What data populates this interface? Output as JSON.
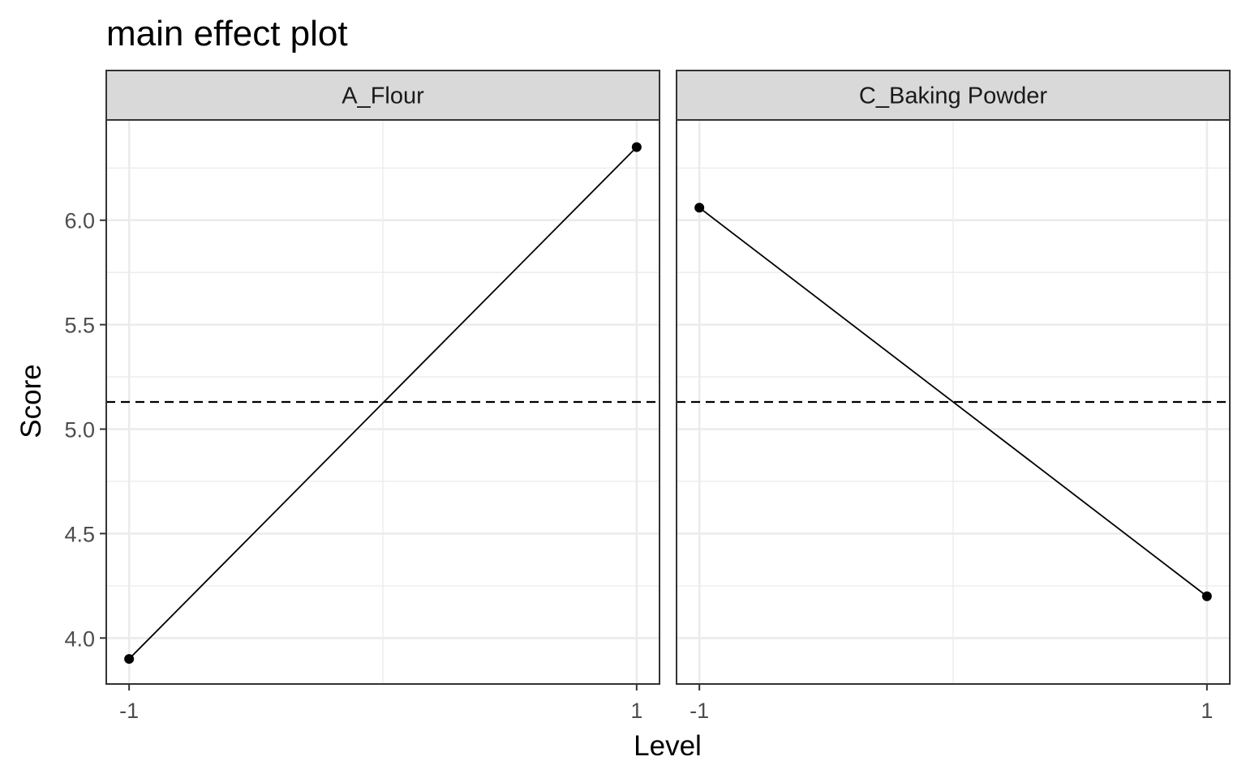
{
  "chart_data": {
    "type": "line",
    "title": "main effect plot",
    "xlabel": "Level",
    "ylabel": "Score",
    "ylim": [
      3.78,
      6.48
    ],
    "y_ticks": [
      "4.0",
      "4.5",
      "5.0",
      "5.5",
      "6.0"
    ],
    "y_tick_values": [
      4.0,
      4.5,
      5.0,
      5.5,
      6.0
    ],
    "x_ticks": [
      "-1",
      "1"
    ],
    "x_tick_values": [
      -1,
      1
    ],
    "reference_line": {
      "y": 5.13,
      "style": "dashed"
    },
    "grid": true,
    "facets": [
      {
        "label": "A_Flour",
        "x": [
          -1,
          1
        ],
        "y": [
          3.9,
          6.35
        ]
      },
      {
        "label": "C_Baking Powder",
        "x": [
          -1,
          1
        ],
        "y": [
          6.06,
          4.2
        ]
      }
    ],
    "colors": {
      "line": "#000000",
      "strip_fill": "#d9d9d9",
      "grid": "#ebebeb",
      "panel_border": "#333333"
    }
  }
}
